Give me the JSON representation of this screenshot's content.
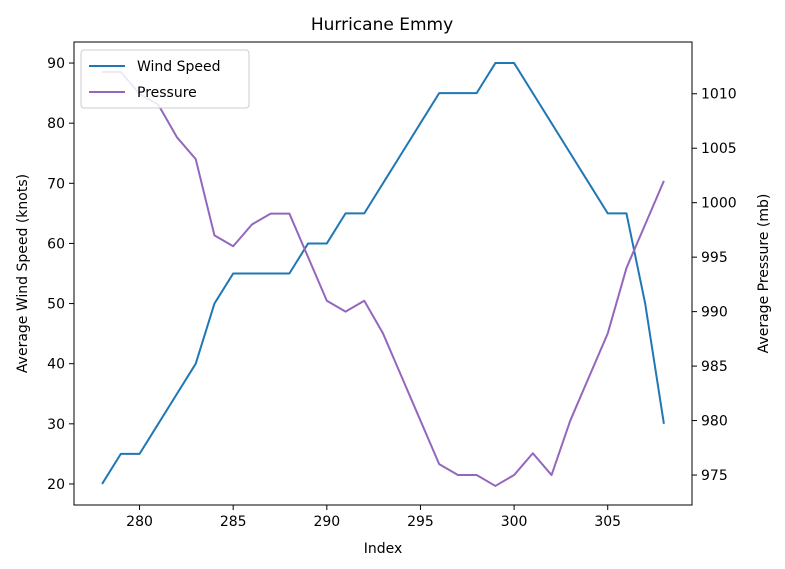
{
  "chart_data": {
    "type": "line",
    "title": "Hurricane Emmy",
    "xlabel": "Index",
    "ylabel": "Average Wind Speed (knots)",
    "y2label": "Average Pressure (mb)",
    "xlim": [
      276.5,
      309.5
    ],
    "ylim": [
      16.5,
      93.5
    ],
    "y2lim": [
      972.25,
      1014.75
    ],
    "xticks": [
      280,
      285,
      290,
      295,
      300,
      305
    ],
    "yticks": [
      20,
      30,
      40,
      50,
      60,
      70,
      80,
      90
    ],
    "y2ticks": [
      975,
      980,
      985,
      990,
      995,
      1000,
      1005,
      1010
    ],
    "legend": {
      "location": "upper left",
      "entries": [
        "Wind Speed",
        "Pressure"
      ]
    },
    "grid": false,
    "x": [
      278,
      279,
      280,
      281,
      282,
      283,
      284,
      285,
      286,
      287,
      288,
      289,
      290,
      291,
      292,
      293,
      294,
      295,
      296,
      297,
      298,
      299,
      300,
      301,
      302,
      303,
      304,
      305,
      306,
      307,
      308
    ],
    "series": [
      {
        "name": "Wind Speed",
        "axis": "left",
        "color": "#1f77b4",
        "values": [
          20,
          25,
          25,
          30,
          35,
          40,
          50,
          55,
          55,
          55,
          55,
          60,
          60,
          65,
          65,
          70,
          75,
          80,
          85,
          85,
          85,
          90,
          90,
          85,
          80,
          75,
          70,
          65,
          65,
          50,
          30
        ]
      },
      {
        "name": "Pressure",
        "axis": "right",
        "color": "#9467bd",
        "values": [
          1012,
          1012,
          1010,
          1009,
          1006,
          1004,
          997,
          996,
          998,
          999,
          999,
          995,
          991,
          990,
          991,
          988,
          984,
          980,
          976,
          975,
          975,
          974,
          975,
          977,
          975,
          980,
          984,
          988,
          994,
          998,
          1002
        ]
      }
    ]
  }
}
